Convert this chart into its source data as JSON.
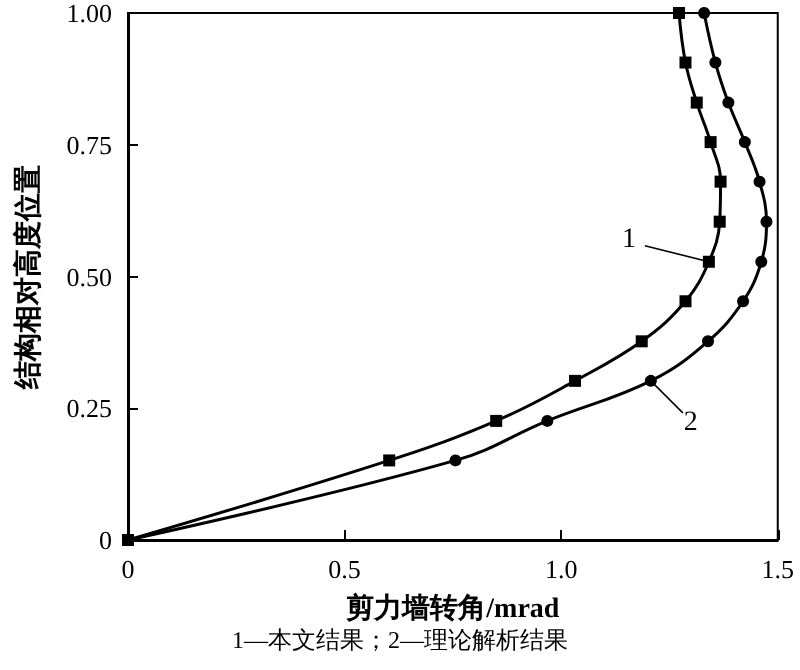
{
  "chart_data": {
    "type": "line",
    "xlabel": "剪力墙转角/mrad",
    "ylabel": "结构相对高度位置",
    "series": [
      {
        "color": "#000000",
        "marker": "square",
        "x": [
          0,
          0.603,
          0.85,
          1.032,
          1.186,
          1.287,
          1.341,
          1.366,
          1.368,
          1.345,
          1.313,
          1.287,
          1.272
        ],
        "values": [
          0,
          0.151,
          0.226,
          0.302,
          0.377,
          0.453,
          0.528,
          0.604,
          0.68,
          0.755,
          0.83,
          0.906,
          1.0
        ]
      },
      {
        "color": "#000000",
        "marker": "circle",
        "x": [
          0,
          0.756,
          0.968,
          1.207,
          1.339,
          1.42,
          1.462,
          1.474,
          1.458,
          1.424,
          1.386,
          1.356,
          1.33
        ],
        "values": [
          0,
          0.151,
          0.226,
          0.302,
          0.377,
          0.453,
          0.528,
          0.604,
          0.68,
          0.755,
          0.83,
          0.906,
          1.0
        ]
      }
    ],
    "xlim": [
      0,
      1.5
    ],
    "xticks": [
      0,
      0.5,
      {
        "value": 1,
        "label": "1.0"
      },
      1.5
    ],
    "ylim": [
      0,
      1
    ],
    "yticks": [
      0,
      {
        "value": 0.25,
        "label": "0.25"
      },
      {
        "value": 0.5,
        "label": "0.50"
      },
      {
        "value": 0.75,
        "label": "0.75"
      },
      {
        "value": 1,
        "label": "1.00"
      }
    ],
    "grid": false,
    "annotations": [
      {
        "text": "1",
        "x": 1.341,
        "y": 0.528
      },
      {
        "text": "2",
        "x": 1.207,
        "y": 0.302
      },
      "1—本文结果；2—理论解析结果"
    ]
  }
}
